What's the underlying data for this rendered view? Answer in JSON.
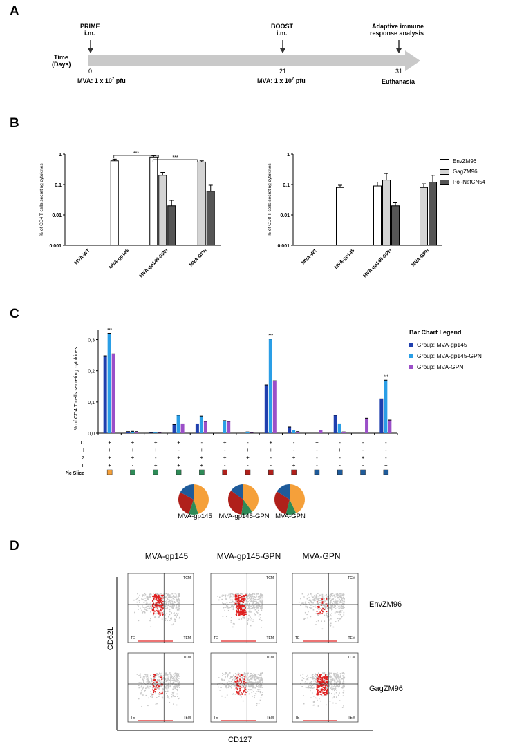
{
  "panels": {
    "a": "A",
    "b": "B",
    "c": "C",
    "d": "D"
  },
  "timeline": {
    "time_label": "Time",
    "days_label": "(Days)",
    "events": [
      {
        "label": "PRIME",
        "sub": "i.m.",
        "day": "0",
        "dose_base": "MVA: 1 x 10",
        "dose_exp": "7",
        "dose_unit": " pfu"
      },
      {
        "label": "BOOST",
        "sub": "i.m.",
        "day": "21",
        "dose_base": "MVA: 1 x 10",
        "dose_exp": "7",
        "dose_unit": " pfu"
      },
      {
        "label": "Adaptive immune",
        "sub": "response analysis",
        "day": "31",
        "note": "Euthanasia"
      }
    ]
  },
  "colors": {
    "env": "#ffffff",
    "gag": "#d4d4d4",
    "pol": "#555555",
    "gp145": "#1f3fae",
    "gp145gpn": "#2a9ee6",
    "gpn": "#9b4fc8",
    "pie_orange": "#f5a03a",
    "pie_green": "#2e8b57",
    "pie_red": "#b0201b",
    "pie_blue": "#1e5b9a",
    "gray_dots": "#c8c8c8",
    "red_dots": "#e02020"
  },
  "chart_data": [
    {
      "type": "bar",
      "title": "",
      "ylabel": "% of CD4 T cells secreting cytokines",
      "yscale": "log",
      "ylim": [
        0.001,
        1
      ],
      "yticks": [
        "1",
        "0.1",
        "0.01",
        "0.001"
      ],
      "categories": [
        "MVA-WT",
        "MVA-gp145",
        "MVA-gp145-GPN",
        "MVA-GPN"
      ],
      "series": [
        {
          "name": "EnvZM96",
          "values": [
            null,
            0.6,
            0.8,
            null
          ],
          "errors": [
            null,
            0.08,
            0.08,
            null
          ]
        },
        {
          "name": "GagZM96",
          "values": [
            null,
            null,
            0.2,
            0.55
          ],
          "errors": [
            null,
            null,
            0.05,
            0.05
          ]
        },
        {
          "name": "Pol-NefCN54",
          "values": [
            null,
            null,
            0.02,
            0.06
          ],
          "errors": [
            null,
            null,
            0.01,
            0.035
          ]
        }
      ],
      "significance": [
        {
          "from": "MVA-gp145",
          "to": "MVA-gp145-GPN",
          "label": "***"
        },
        {
          "from": "MVA-gp145-GPN",
          "to": "MVA-GPN",
          "label": "***"
        }
      ]
    },
    {
      "type": "bar",
      "title": "",
      "ylabel": "% of CD8 T cells secreting cytokines",
      "yscale": "log",
      "ylim": [
        0.001,
        1
      ],
      "yticks": [
        "1",
        "0.1",
        "0.01",
        "0.001"
      ],
      "categories": [
        "MVA-WT",
        "MVA-gp145",
        "MVA-gp145-GPN",
        "MVA-GPN"
      ],
      "series": [
        {
          "name": "EnvZM96",
          "values": [
            null,
            0.08,
            0.09,
            null
          ],
          "errors": [
            null,
            0.015,
            0.03,
            null
          ]
        },
        {
          "name": "GagZM96",
          "values": [
            null,
            null,
            0.14,
            0.08
          ],
          "errors": [
            null,
            null,
            0.09,
            0.025
          ]
        },
        {
          "name": "Pol-NefCN54",
          "values": [
            null,
            null,
            0.02,
            0.12
          ],
          "errors": [
            null,
            null,
            0.005,
            0.08
          ]
        }
      ],
      "legend": [
        "EnvZM96",
        "GagZM96",
        "Pol-NefCN54"
      ]
    },
    {
      "type": "bar",
      "title": "",
      "ylabel": "% of CD4 T cells secreting cytokines",
      "ylim": [
        0,
        0.33
      ],
      "yticks": [
        "0,3",
        "0,2",
        "0,1",
        "0,0"
      ],
      "legend_title": "Bar Chart Legend",
      "series": [
        {
          "name": "Group: MVA-gp145",
          "values": [
            0.248,
            0.005,
            0.002,
            0.028,
            0.03,
            0.0,
            0.0,
            0.155,
            0.02,
            0.0,
            0.058,
            0.0,
            0.11
          ]
        },
        {
          "name": "Group: MVA-gp145-GPN",
          "values": [
            0.32,
            0.006,
            0.003,
            0.058,
            0.055,
            0.04,
            0.004,
            0.302,
            0.01,
            0.0,
            0.03,
            0.0,
            0.17
          ]
        },
        {
          "name": "Group: MVA-GPN",
          "values": [
            0.254,
            0.005,
            0.002,
            0.03,
            0.038,
            0.038,
            0.002,
            0.168,
            0.005,
            0.01,
            0.004,
            0.048,
            0.042
          ]
        }
      ],
      "stars": [
        {
          "index": 0,
          "label": "***"
        },
        {
          "index": 7,
          "label": "***"
        },
        {
          "index": 12,
          "label": "***"
        }
      ],
      "row_labels": [
        "C",
        "I",
        "2",
        "T"
      ],
      "combos": [
        [
          "+",
          "+",
          "+",
          "+"
        ],
        [
          "+",
          "+",
          "+",
          "-"
        ],
        [
          "+",
          "+",
          "-",
          "+"
        ],
        [
          "+",
          "-",
          "+",
          "+"
        ],
        [
          "-",
          "+",
          "+",
          "+"
        ],
        [
          "+",
          "-",
          "+",
          "-"
        ],
        [
          "-",
          "+",
          "+",
          "-"
        ],
        [
          "+",
          "+",
          "-",
          "-"
        ],
        [
          "-",
          "-",
          "+",
          "+"
        ],
        [
          "+",
          "-",
          "-",
          "-"
        ],
        [
          "-",
          "+",
          "-",
          "-"
        ],
        [
          "-",
          "-",
          "+",
          "-"
        ],
        [
          "-",
          "-",
          "-",
          "+"
        ]
      ],
      "pie_slice_label": "Pie Slice",
      "pie_slice_groups": [
        "orange",
        "green",
        "green",
        "green",
        "green",
        "red",
        "red",
        "red",
        "red",
        "blue",
        "blue",
        "blue",
        "blue"
      ]
    },
    {
      "type": "pie",
      "pies": [
        {
          "name": "MVA-gp145",
          "slices": [
            {
              "group": "orange",
              "value": 0.45
            },
            {
              "group": "green",
              "value": 0.1
            },
            {
              "group": "red",
              "value": 0.28
            },
            {
              "group": "blue",
              "value": 0.17
            }
          ]
        },
        {
          "name": "MVA-gp145-GPN",
          "slices": [
            {
              "group": "orange",
              "value": 0.4
            },
            {
              "group": "green",
              "value": 0.12
            },
            {
              "group": "red",
              "value": 0.33
            },
            {
              "group": "blue",
              "value": 0.15
            }
          ]
        },
        {
          "name": "MVA-GPN",
          "slices": [
            {
              "group": "orange",
              "value": 0.43
            },
            {
              "group": "green",
              "value": 0.11
            },
            {
              "group": "red",
              "value": 0.3
            },
            {
              "group": "blue",
              "value": 0.16
            }
          ]
        }
      ]
    }
  ],
  "flow": {
    "columns": [
      "MVA-gp145",
      "MVA-gp145-GPN",
      "MVA-GPN"
    ],
    "rows": [
      "EnvZM96",
      "GagZM96"
    ],
    "ylabel": "CD62L",
    "xlabel": "CD127",
    "quadrants": {
      "tcm": "TCM",
      "te": "TE",
      "tem": "TEM"
    }
  }
}
